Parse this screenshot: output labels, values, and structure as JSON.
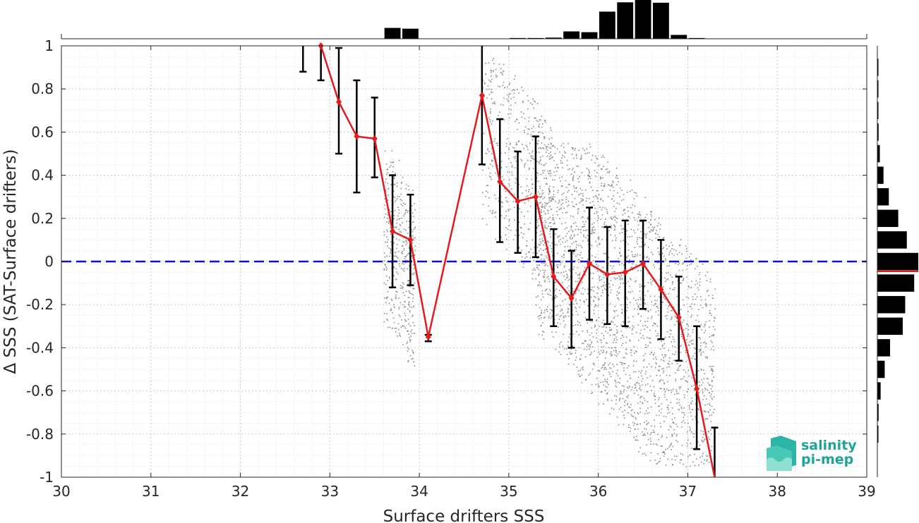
{
  "chart_data": {
    "type": "scatter",
    "xlabel": "Surface drifters SSS",
    "ylabel": "Δ SSS (SAT-Surface drifters)",
    "xlim": [
      30,
      39
    ],
    "ylim": [
      -1,
      1
    ],
    "x_ticks": [
      "30",
      "31",
      "32",
      "33",
      "34",
      "35",
      "36",
      "37",
      "38",
      "39"
    ],
    "y_ticks": [
      "1",
      "0.8",
      "0.6",
      "0.4",
      "0.2",
      "0",
      "-0.2",
      "-0.4",
      "-0.6",
      "-0.8",
      "-1"
    ],
    "grid": true,
    "zero_line": {
      "y": 0,
      "color": "#1010d0",
      "style": "dashed"
    },
    "colors": {
      "mean_line": "#e41a1c",
      "error_bars": "#000000",
      "scatter": "#8c8c8c",
      "histogram": "#000000",
      "logo": "#1fa398"
    },
    "mean_series": {
      "x": [
        32.9,
        33.1,
        33.3,
        33.5,
        33.7,
        33.9,
        34.1,
        34.7,
        34.9,
        35.1,
        35.3,
        35.5,
        35.7,
        35.9,
        36.1,
        36.3,
        36.5,
        36.7,
        36.9,
        37.1,
        37.3
      ],
      "y": [
        1.0,
        0.74,
        0.58,
        0.57,
        0.14,
        0.1,
        -0.35,
        0.77,
        0.37,
        0.28,
        0.3,
        -0.07,
        -0.17,
        -0.01,
        -0.06,
        -0.05,
        -0.01,
        -0.13,
        -0.26,
        -0.59,
        -1.0
      ]
    },
    "error_bars": [
      {
        "x": 32.7,
        "low": 0.88,
        "high": 1.0
      },
      {
        "x": 32.9,
        "low": 0.84,
        "high": 1.0
      },
      {
        "x": 33.1,
        "low": 0.5,
        "high": 0.99
      },
      {
        "x": 33.3,
        "low": 0.32,
        "high": 0.84
      },
      {
        "x": 33.5,
        "low": 0.39,
        "high": 0.76
      },
      {
        "x": 33.7,
        "low": -0.12,
        "high": 0.4
      },
      {
        "x": 33.9,
        "low": -0.11,
        "high": 0.31
      },
      {
        "x": 34.1,
        "low": -0.37,
        "high": -0.34
      },
      {
        "x": 34.7,
        "low": 0.45,
        "high": 1.0
      },
      {
        "x": 34.9,
        "low": 0.09,
        "high": 0.66
      },
      {
        "x": 35.1,
        "low": 0.04,
        "high": 0.51
      },
      {
        "x": 35.3,
        "low": 0.02,
        "high": 0.58
      },
      {
        "x": 35.5,
        "low": -0.3,
        "high": 0.15
      },
      {
        "x": 35.7,
        "low": -0.4,
        "high": 0.05
      },
      {
        "x": 35.9,
        "low": -0.27,
        "high": 0.25
      },
      {
        "x": 36.1,
        "low": -0.29,
        "high": 0.16
      },
      {
        "x": 36.3,
        "low": -0.3,
        "high": 0.19
      },
      {
        "x": 36.5,
        "low": -0.22,
        "high": 0.19
      },
      {
        "x": 36.7,
        "low": -0.36,
        "high": 0.1
      },
      {
        "x": 36.9,
        "low": -0.46,
        "high": -0.07
      },
      {
        "x": 37.1,
        "low": -0.87,
        "high": -0.3
      },
      {
        "x": 37.3,
        "low": -1.0,
        "high": -0.77
      }
    ],
    "scatter_clusters": [
      {
        "x0": 33.6,
        "x1": 33.95,
        "y0": -0.5,
        "y1": 0.55,
        "count": 420,
        "slope": -2.2
      },
      {
        "x0": 34.7,
        "x1": 35.5,
        "y0": -0.1,
        "y1": 0.95,
        "count": 520,
        "slope": -1.4
      },
      {
        "x0": 35.3,
        "x1": 37.3,
        "y0": -0.95,
        "y1": 0.55,
        "count": 2600,
        "slope": -1.3
      }
    ],
    "top_histogram": {
      "x": [
        33.7,
        33.9,
        35.1,
        35.3,
        35.5,
        35.7,
        35.9,
        36.1,
        36.3,
        36.5,
        36.7,
        36.9,
        37.1
      ],
      "counts": [
        0.28,
        0.26,
        0.02,
        0.02,
        0.03,
        0.19,
        0.17,
        0.7,
        0.94,
        1.0,
        0.93,
        0.1,
        0.02
      ]
    },
    "right_histogram": {
      "y": [
        0.9,
        0.8,
        0.7,
        0.6,
        0.5,
        0.4,
        0.3,
        0.2,
        0.1,
        0.0,
        -0.1,
        -0.2,
        -0.3,
        -0.4,
        -0.5,
        -0.6,
        -0.7,
        -0.8
      ],
      "counts": [
        0.02,
        0.02,
        0.02,
        0.03,
        0.06,
        0.15,
        0.28,
        0.51,
        0.72,
        1.0,
        0.9,
        0.68,
        0.62,
        0.31,
        0.18,
        0.08,
        0.03,
        0.02
      ],
      "mean": -0.045
    }
  },
  "logo": {
    "line1": "salinity",
    "line2": "pi-mep"
  }
}
